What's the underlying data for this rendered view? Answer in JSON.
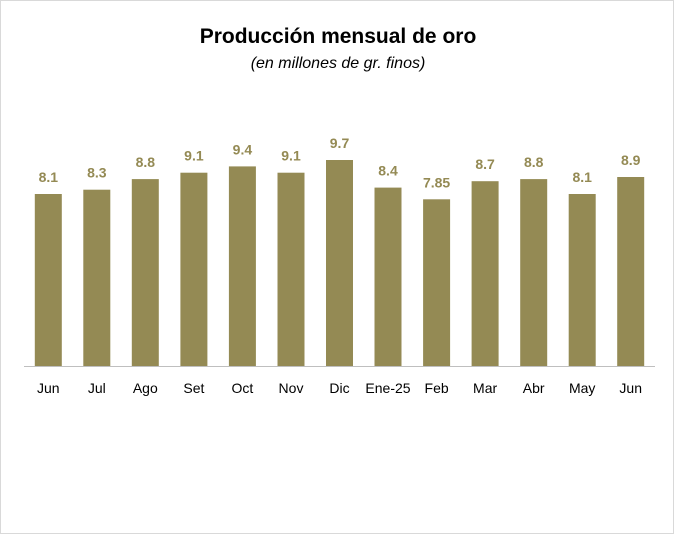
{
  "chart_data": {
    "type": "bar",
    "title": "Producción mensual de oro",
    "subtitle": "(en millones de gr. finos)",
    "categories": [
      "Jun",
      "Jul",
      "Ago",
      "Set",
      "Oct",
      "Nov",
      "Dic",
      "Ene-25",
      "Feb",
      "Mar",
      "Abr",
      "May",
      "Jun"
    ],
    "values": [
      8.1,
      8.3,
      8.8,
      9.1,
      9.4,
      9.1,
      9.7,
      8.4,
      7.85,
      8.7,
      8.8,
      8.1,
      8.9
    ],
    "value_labels": [
      "8.1",
      "8.3",
      "8.8",
      "9.1",
      "9.4",
      "9.1",
      "9.7",
      "8.4",
      "7.85",
      "8.7",
      "8.8",
      "8.1",
      "8.9"
    ],
    "ylim": [
      0,
      9.7
    ],
    "grid": false,
    "legend": "none",
    "bar_color": "#948A54",
    "label_color": "#948A54"
  }
}
